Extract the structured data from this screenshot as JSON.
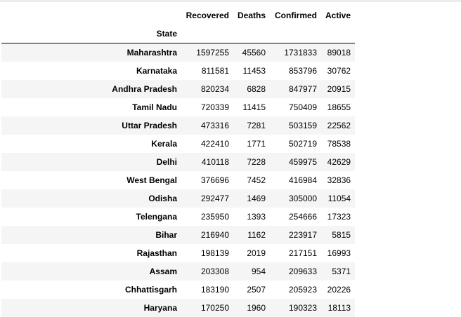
{
  "table": {
    "columns": [
      "Recovered",
      "Deaths",
      "Confirmed",
      "Active"
    ],
    "index_name": "State",
    "rows": [
      {
        "state": "Maharashtra",
        "values": [
          "1597255",
          "45560",
          "1731833",
          "89018"
        ]
      },
      {
        "state": "Karnataka",
        "values": [
          "811581",
          "11453",
          "853796",
          "30762"
        ]
      },
      {
        "state": "Andhra Pradesh",
        "values": [
          "820234",
          "6828",
          "847977",
          "20915"
        ]
      },
      {
        "state": "Tamil Nadu",
        "values": [
          "720339",
          "11415",
          "750409",
          "18655"
        ]
      },
      {
        "state": "Uttar Pradesh",
        "values": [
          "473316",
          "7281",
          "503159",
          "22562"
        ]
      },
      {
        "state": "Kerala",
        "values": [
          "422410",
          "1771",
          "502719",
          "78538"
        ]
      },
      {
        "state": "Delhi",
        "values": [
          "410118",
          "7228",
          "459975",
          "42629"
        ]
      },
      {
        "state": "West Bengal",
        "values": [
          "376696",
          "7452",
          "416984",
          "32836"
        ]
      },
      {
        "state": "Odisha",
        "values": [
          "292477",
          "1469",
          "305000",
          "11054"
        ]
      },
      {
        "state": "Telengana",
        "values": [
          "235950",
          "1393",
          "254666",
          "17323"
        ]
      },
      {
        "state": "Bihar",
        "values": [
          "216940",
          "1162",
          "223917",
          "5815"
        ]
      },
      {
        "state": "Rajasthan",
        "values": [
          "198139",
          "2019",
          "217151",
          "16993"
        ]
      },
      {
        "state": "Assam",
        "values": [
          "203308",
          "954",
          "209633",
          "5371"
        ]
      },
      {
        "state": "Chhattisgarh",
        "values": [
          "183190",
          "2507",
          "205923",
          "20226"
        ]
      },
      {
        "state": "Haryana",
        "values": [
          "170250",
          "1960",
          "190323",
          "18113"
        ]
      }
    ]
  }
}
